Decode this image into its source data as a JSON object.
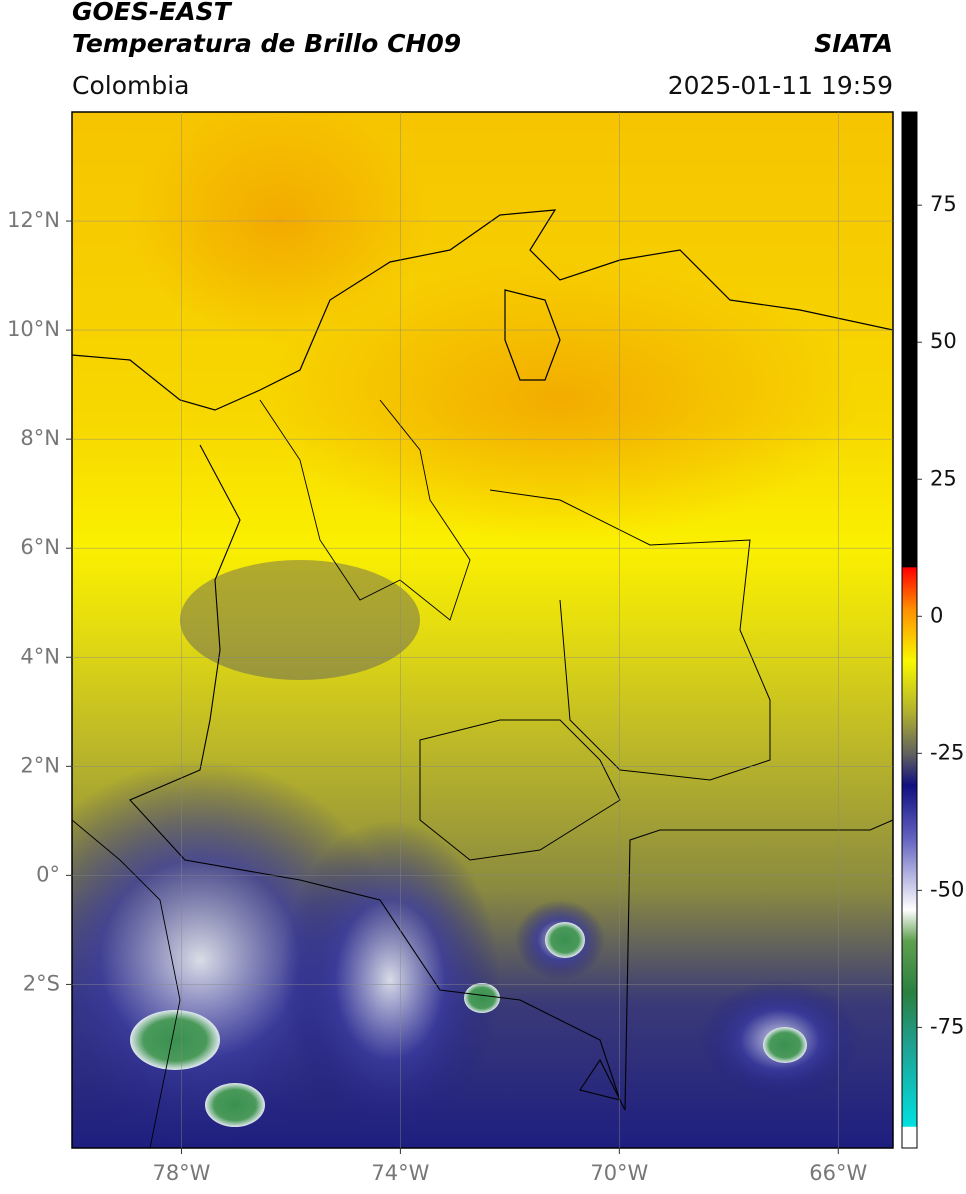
{
  "header": {
    "satellite": "GOES-EAST",
    "product": "Temperatura de Brillo CH09",
    "source": "SIATA",
    "region": "Colombia",
    "datetime": "2025-01-11 19:59"
  },
  "map": {
    "xlim": [
      -80,
      -65
    ],
    "ylim": [
      -5,
      14
    ],
    "grid": true,
    "xticks": [
      {
        "value": -78,
        "label": "78°W"
      },
      {
        "value": -74,
        "label": "74°W"
      },
      {
        "value": -70,
        "label": "70°W"
      },
      {
        "value": -66,
        "label": "66°W"
      }
    ],
    "yticks": [
      {
        "value": 12,
        "label": "12°N"
      },
      {
        "value": 10,
        "label": "10°N"
      },
      {
        "value": 8,
        "label": "8°N"
      },
      {
        "value": 6,
        "label": "6°N"
      },
      {
        "value": 4,
        "label": "4°N"
      },
      {
        "value": 2,
        "label": "2°N"
      },
      {
        "value": 0,
        "label": "0°"
      },
      {
        "value": -2,
        "label": "2°S"
      }
    ]
  },
  "colorbar": {
    "lim": [
      -97,
      92
    ],
    "ticks": [
      75,
      50,
      25,
      0,
      -25,
      -50,
      -75
    ]
  }
}
